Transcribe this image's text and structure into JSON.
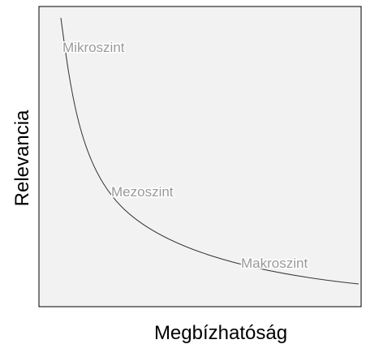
{
  "axes": {
    "x_label": "Megbízhatóság",
    "y_label": "Relevancia"
  },
  "annotations": [
    "Mikroszint",
    "Mezoszint",
    "Makroszint"
  ]
}
